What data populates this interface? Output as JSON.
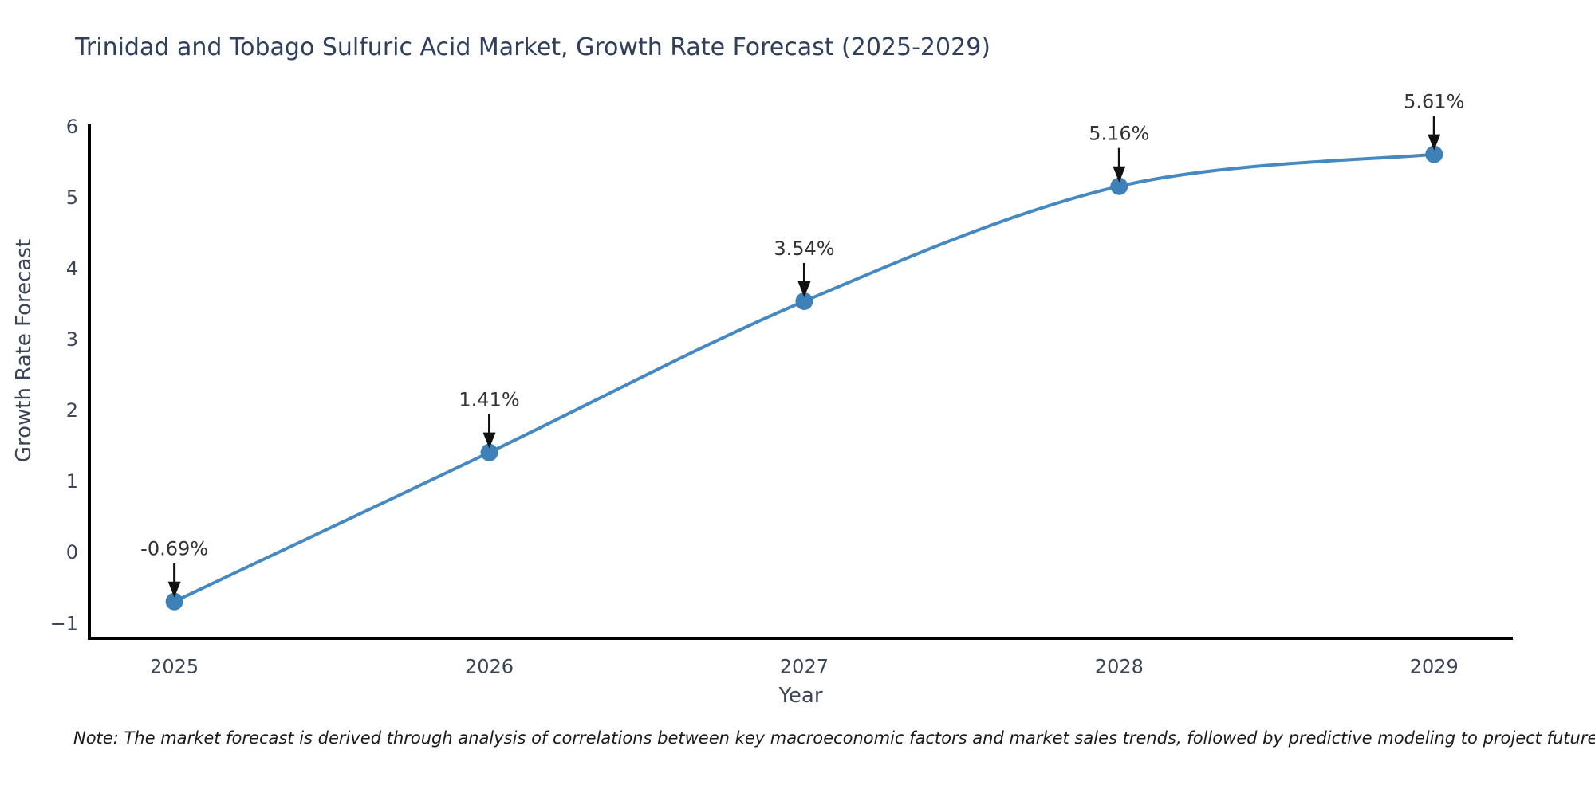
{
  "chart_data": {
    "type": "line",
    "title": "Trinidad and Tobago Sulfuric Acid Market, Growth Rate Forecast (2025-2029)",
    "xlabel": "Year",
    "ylabel": "Growth Rate Forecast",
    "x": [
      2025,
      2026,
      2027,
      2028,
      2029
    ],
    "values": [
      -0.69,
      1.41,
      3.54,
      5.16,
      5.61
    ],
    "point_labels": [
      "-0.69%",
      "1.41%",
      "3.54%",
      "5.16%",
      "5.61%"
    ],
    "yticks": [
      -1,
      0,
      1,
      2,
      3,
      4,
      5,
      6
    ],
    "xlim": [
      2024.73,
      2029.25
    ],
    "ylim": [
      -1.21,
      6.01
    ],
    "grid": false,
    "legend": "none",
    "line_color": "#4688c0",
    "marker_color": "#3e80b8",
    "axis_color": "#000000",
    "tick_color": "#3c4557",
    "annotation_color": "#333333",
    "arrow_color": "#111111",
    "title_color": "#2f3f5c",
    "note": "Note: The market forecast is derived through analysis of correlations between key macroeconomic factors and market sales trends, followed by predictive modeling to project future sales"
  }
}
